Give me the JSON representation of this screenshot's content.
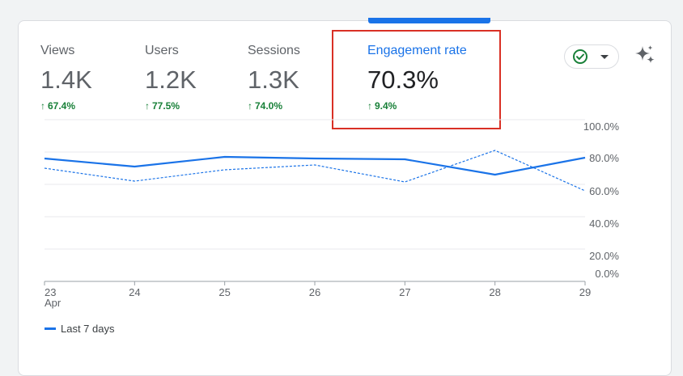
{
  "metrics": [
    {
      "label": "Views",
      "value": "1.4K",
      "change": "67.4%"
    },
    {
      "label": "Users",
      "value": "1.2K",
      "change": "77.5%"
    },
    {
      "label": "Sessions",
      "value": "1.3K",
      "change": "74.0%"
    },
    {
      "label": "Engagement rate",
      "value": "70.3%",
      "change": "9.4%"
    }
  ],
  "selected_metric": "Engagement rate",
  "icons": {
    "status": "check-circle-icon",
    "dropdown": "chevron-down-icon",
    "insights": "sparkle-icon",
    "change_direction": "arrow-up-icon"
  },
  "colors": {
    "accent": "#1a73e8",
    "positive": "#188038",
    "highlight": "#d93025"
  },
  "legend": {
    "label": "Last 7 days"
  },
  "chart_data": {
    "type": "line",
    "x": [
      "23",
      "24",
      "25",
      "26",
      "27",
      "28",
      "29"
    ],
    "x_month_label": "Apr",
    "y_ticks": [
      "0.0%",
      "20.0%",
      "40.0%",
      "60.0%",
      "80.0%",
      "100.0%"
    ],
    "ylim": [
      0,
      100
    ],
    "grid": true,
    "legend_position": "bottom-left",
    "series": [
      {
        "name": "Last 7 days",
        "style": "solid",
        "values": [
          76,
          71,
          77,
          76,
          75.5,
          66,
          76.5
        ]
      },
      {
        "name": "",
        "style": "dashed",
        "values": [
          70,
          62,
          69,
          72,
          61.5,
          81,
          56
        ]
      }
    ]
  }
}
